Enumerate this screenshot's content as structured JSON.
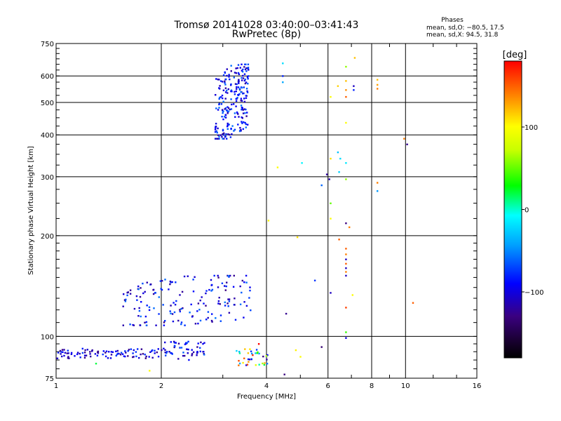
{
  "header": {
    "title_line1": "Tromsø 20141028 03:40:00–03:41:43",
    "title_line2": "RwPretec (8p)"
  },
  "phase_info": {
    "heading": "Phases",
    "line_o": "mean, sd,O: −80.5, 17.5",
    "line_x": "mean, sd,X:  94.5, 31.8"
  },
  "colorbar": {
    "unit_label": "[deg]",
    "ticks": [
      {
        "value": 100,
        "label": "100"
      },
      {
        "value": 0,
        "label": "0"
      },
      {
        "value": -100,
        "label": "−100"
      }
    ],
    "range": [
      -180,
      180
    ]
  },
  "chart_data": {
    "type": "scatter",
    "xlabel": "Frequency [MHz]",
    "ylabel": "Stationary phase Virtual Height [km]",
    "x_scale": "log",
    "y_scale": "log",
    "xlim": [
      1,
      16
    ],
    "ylim": [
      75,
      750
    ],
    "x_ticks": [
      {
        "value": 1,
        "label": "1"
      },
      {
        "value": 2,
        "label": "2"
      },
      {
        "value": 4,
        "label": "4"
      },
      {
        "value": 6,
        "label": "6"
      },
      {
        "value": 8,
        "label": "8"
      },
      {
        "value": 10,
        "label": "10"
      },
      {
        "value": 16,
        "label": "16"
      }
    ],
    "x_gridlines": [
      2,
      4,
      6,
      8,
      10
    ],
    "y_ticks": [
      {
        "value": 75,
        "label": "75"
      },
      {
        "value": 100,
        "label": "100"
      },
      {
        "value": 200,
        "label": "200"
      },
      {
        "value": 300,
        "label": "300"
      },
      {
        "value": 400,
        "label": "400"
      },
      {
        "value": 500,
        "label": "500"
      },
      {
        "value": 600,
        "label": "600"
      },
      {
        "value": 750,
        "label": "750"
      }
    ],
    "y_gridlines": [
      100,
      200,
      300,
      400,
      500,
      600
    ],
    "clusters": [
      {
        "f_range": [
          2.85,
          3.55
        ],
        "h_range": [
          390,
          650
        ],
        "phase": [
          -125,
          -55
        ],
        "count": 230,
        "slant": 0.55
      },
      {
        "f_range": [
          1.0,
          2.0
        ],
        "h_range": [
          86,
          92
        ],
        "phase": [
          -130,
          -70
        ],
        "count": 95,
        "slant": 0
      },
      {
        "f_range": [
          2.0,
          2.7
        ],
        "h_range": [
          85,
          97
        ],
        "phase": [
          -125,
          -60
        ],
        "count": 55,
        "slant": 0
      },
      {
        "f_range": [
          1.55,
          3.6
        ],
        "h_range": [
          108,
          152
        ],
        "phase": [
          -130,
          -55
        ],
        "count": 165,
        "slant": 0.45
      },
      {
        "f_range": [
          3.25,
          4.05
        ],
        "h_range": [
          82,
          92
        ],
        "phase": [
          -130,
          170
        ],
        "count": 35,
        "slant": 0
      }
    ],
    "points": [
      {
        "x": 6.75,
        "y": 640,
        "phase": 60
      },
      {
        "x": 7.15,
        "y": 680,
        "phase": 120
      },
      {
        "x": 6.75,
        "y": 580,
        "phase": 120
      },
      {
        "x": 6.75,
        "y": 545,
        "phase": 135
      },
      {
        "x": 6.75,
        "y": 520,
        "phase": 150
      },
      {
        "x": 6.4,
        "y": 560,
        "phase": 115
      },
      {
        "x": 6.1,
        "y": 520,
        "phase": 100
      },
      {
        "x": 7.1,
        "y": 560,
        "phase": -110
      },
      {
        "x": 7.1,
        "y": 545,
        "phase": -80
      },
      {
        "x": 8.3,
        "y": 585,
        "phase": 120
      },
      {
        "x": 8.3,
        "y": 565,
        "phase": 130
      },
      {
        "x": 8.3,
        "y": 550,
        "phase": 140
      },
      {
        "x": 4.45,
        "y": 655,
        "phase": -20
      },
      {
        "x": 4.45,
        "y": 600,
        "phase": -80
      },
      {
        "x": 4.45,
        "y": 575,
        "phase": -40
      },
      {
        "x": 6.75,
        "y": 435,
        "phase": 100
      },
      {
        "x": 9.9,
        "y": 390,
        "phase": 140
      },
      {
        "x": 10.1,
        "y": 375,
        "phase": -125
      },
      {
        "x": 4.3,
        "y": 320,
        "phase": 100
      },
      {
        "x": 5.05,
        "y": 330,
        "phase": -10
      },
      {
        "x": 6.4,
        "y": 355,
        "phase": -30
      },
      {
        "x": 6.5,
        "y": 340,
        "phase": -20
      },
      {
        "x": 6.75,
        "y": 330,
        "phase": -15
      },
      {
        "x": 6.1,
        "y": 340,
        "phase": 110
      },
      {
        "x": 6.45,
        "y": 310,
        "phase": -25
      },
      {
        "x": 5.95,
        "y": 305,
        "phase": -120
      },
      {
        "x": 6.05,
        "y": 295,
        "phase": -115
      },
      {
        "x": 5.75,
        "y": 283,
        "phase": -60
      },
      {
        "x": 6.75,
        "y": 295,
        "phase": 60
      },
      {
        "x": 8.3,
        "y": 288,
        "phase": 140
      },
      {
        "x": 8.3,
        "y": 272,
        "phase": -45
      },
      {
        "x": 6.1,
        "y": 250,
        "phase": 50
      },
      {
        "x": 6.1,
        "y": 225,
        "phase": 100
      },
      {
        "x": 6.75,
        "y": 218,
        "phase": -130
      },
      {
        "x": 6.9,
        "y": 212,
        "phase": 140
      },
      {
        "x": 4.05,
        "y": 222,
        "phase": 100
      },
      {
        "x": 4.9,
        "y": 198,
        "phase": 110
      },
      {
        "x": 6.45,
        "y": 195,
        "phase": 150
      },
      {
        "x": 6.75,
        "y": 183,
        "phase": 150
      },
      {
        "x": 6.75,
        "y": 176,
        "phase": 140
      },
      {
        "x": 6.75,
        "y": 170,
        "phase": -110
      },
      {
        "x": 6.75,
        "y": 165,
        "phase": 150
      },
      {
        "x": 6.75,
        "y": 160,
        "phase": -110
      },
      {
        "x": 6.75,
        "y": 156,
        "phase": 140
      },
      {
        "x": 6.75,
        "y": 152,
        "phase": -110
      },
      {
        "x": 5.5,
        "y": 147,
        "phase": -75
      },
      {
        "x": 6.1,
        "y": 135,
        "phase": -110
      },
      {
        "x": 7.05,
        "y": 133,
        "phase": 100
      },
      {
        "x": 6.75,
        "y": 122,
        "phase": 160
      },
      {
        "x": 4.55,
        "y": 117,
        "phase": -125
      },
      {
        "x": 10.5,
        "y": 126,
        "phase": 150
      },
      {
        "x": 6.75,
        "y": 103,
        "phase": 40
      },
      {
        "x": 6.75,
        "y": 99,
        "phase": -100
      },
      {
        "x": 5.75,
        "y": 93,
        "phase": -135
      },
      {
        "x": 4.85,
        "y": 91,
        "phase": 105
      },
      {
        "x": 5.0,
        "y": 87,
        "phase": 100
      },
      {
        "x": 4.5,
        "y": 77,
        "phase": -130
      },
      {
        "x": 1.85,
        "y": 79,
        "phase": 100
      },
      {
        "x": 1.3,
        "y": 83,
        "phase": 20
      },
      {
        "x": 1.9,
        "y": 138,
        "phase": -115
      },
      {
        "x": 1.9,
        "y": 134,
        "phase": -120
      },
      {
        "x": 2.05,
        "y": 148,
        "phase": -60
      },
      {
        "x": 3.8,
        "y": 95,
        "phase": 180
      },
      {
        "x": 3.65,
        "y": 88,
        "phase": 170
      },
      {
        "x": 3.45,
        "y": 86,
        "phase": 150
      },
      {
        "x": 3.55,
        "y": 84,
        "phase": 130
      }
    ]
  }
}
